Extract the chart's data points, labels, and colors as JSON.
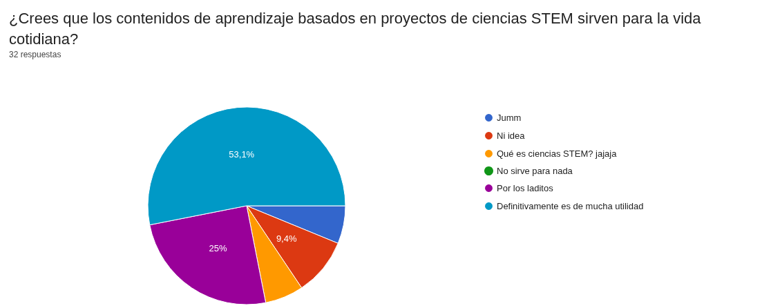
{
  "chart_data": {
    "type": "pie",
    "title": "¿Crees que los contenidos de aprendizaje basados en proyectos de ciencias STEM sirven para la vida cotidiana?",
    "subtitle": "32 respuestas",
    "categories": [
      "Jumm",
      "Ni idea",
      "Qué es ciencias STEM? jajaja",
      "No sirve para nada",
      "Por los laditos",
      "Definitivamente es de mucha utilidad"
    ],
    "values": [
      6.2,
      9.4,
      6.3,
      0,
      25,
      53.1
    ],
    "value_labels": [
      null,
      "9,4%",
      null,
      null,
      "25%",
      "53,1%"
    ],
    "colors": [
      "#3366cc",
      "#dc3912",
      "#ff9900",
      "#109618",
      "#990099",
      "#0099c6"
    ],
    "legend": "right"
  }
}
